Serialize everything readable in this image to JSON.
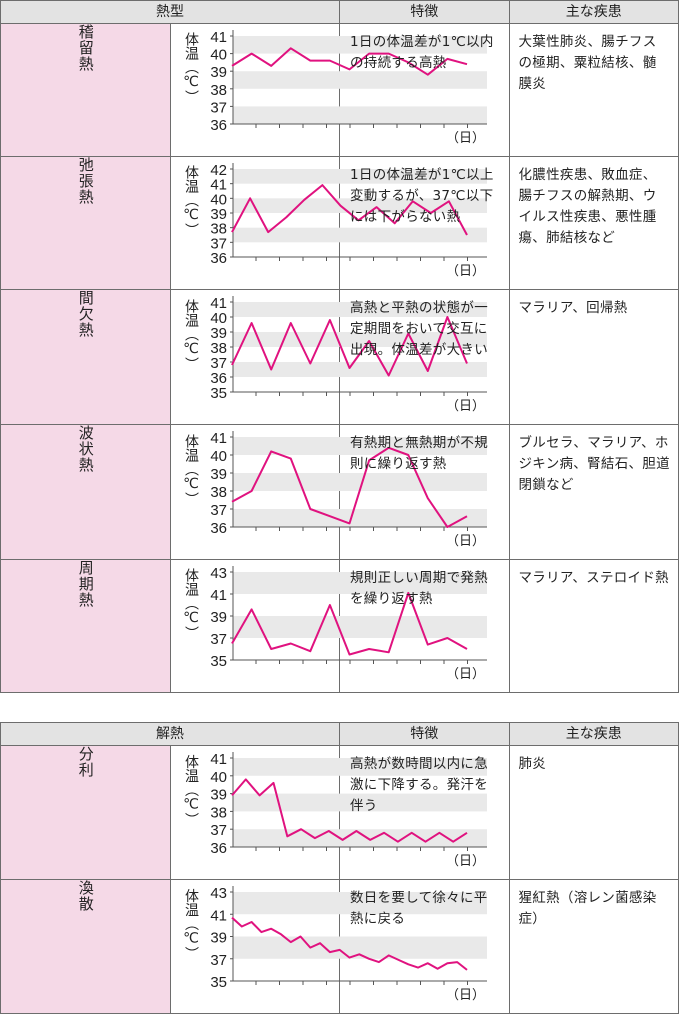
{
  "table1": {
    "headers": [
      "熱型",
      "特徴",
      "主な疾患"
    ],
    "rows": [
      {
        "name": "稽留熱",
        "feature": "1日の体温差が1℃以内の持続する高熱",
        "diseases": "大葉性肺炎、腸チフスの極期、粟粒結核、髄膜炎",
        "chart": {
          "ylabel": "体温（℃）",
          "ticks": [
            "41",
            "40",
            "39",
            "38",
            "37",
            "36"
          ],
          "ymin": 36,
          "ymax": 41,
          "xunit": "（日）",
          "values": [
            39.3,
            40.0,
            39.3,
            40.3,
            39.6,
            39.6,
            39.1,
            40.0,
            40.0,
            39.5,
            38.8,
            39.7,
            39.4
          ]
        }
      },
      {
        "name": "弛張熱",
        "feature": "1日の体温差が1℃以上変動するが、37℃以下には下がらない熱",
        "diseases": "化膿性疾患、敗血症、腸チフスの解熱期、ウイルス性疾患、悪性腫瘍、肺結核など",
        "chart": {
          "ylabel": "体温（℃）",
          "ticks": [
            "42",
            "41",
            "40",
            "39",
            "38",
            "37",
            "36"
          ],
          "ymin": 36,
          "ymax": 42,
          "xunit": "（日）",
          "values": [
            37.7,
            40.0,
            37.7,
            38.7,
            39.9,
            40.9,
            39.5,
            38.5,
            39.4,
            38.3,
            39.8,
            39.0,
            39.8,
            37.5
          ]
        }
      },
      {
        "name": "間欠熱",
        "feature": "高熱と平熱の状態が一定期間をおいて交互に出現。体温差が大きい",
        "diseases": "マラリア、回帰熱",
        "chart": {
          "ylabel": "体温（℃）",
          "ticks": [
            "41",
            "40",
            "39",
            "38",
            "37",
            "36",
            "35"
          ],
          "ymin": 35,
          "ymax": 41,
          "xunit": "（日）",
          "values": [
            36.8,
            39.6,
            36.5,
            39.6,
            36.9,
            39.8,
            36.6,
            38.4,
            36.1,
            38.9,
            36.4,
            40.0,
            36.9
          ]
        }
      },
      {
        "name": "波状熱",
        "feature": "有熱期と無熱期が不規則に繰り返す熱",
        "diseases": "ブルセラ、マラリア、ホジキン病、腎結石、胆道閉鎖など",
        "chart": {
          "ylabel": "体温（℃）",
          "ticks": [
            "41",
            "40",
            "39",
            "38",
            "37",
            "36"
          ],
          "ymin": 36,
          "ymax": 41,
          "xunit": "（日）",
          "values": [
            37.4,
            38.0,
            40.2,
            39.8,
            37.0,
            36.6,
            36.2,
            39.7,
            40.4,
            40.0,
            37.6,
            36.0,
            36.6
          ]
        }
      },
      {
        "name": "周期熱",
        "feature": "規則正しい周期で発熱を繰り返す熱",
        "diseases": "マラリア、ステロイド熱",
        "chart": {
          "ylabel": "体温（℃）",
          "ticks": [
            "43",
            "41",
            "39",
            "37",
            "35"
          ],
          "ymin": 35,
          "ymax": 43,
          "xunit": "（日）",
          "values": [
            36.5,
            39.6,
            36.0,
            36.5,
            35.8,
            40.0,
            35.5,
            36.0,
            35.7,
            41.1,
            36.4,
            37.0,
            36.0
          ]
        }
      }
    ]
  },
  "table2": {
    "headers": [
      "解熱",
      "特徴",
      "主な疾患"
    ],
    "rows": [
      {
        "name": "分利",
        "feature": "高熱が数時間以内に急激に下降する。発汗を伴う",
        "diseases": "肺炎",
        "chart": {
          "ylabel": "体温（℃）",
          "ticks": [
            "41",
            "40",
            "39",
            "38",
            "37",
            "36"
          ],
          "ymin": 36,
          "ymax": 41,
          "xunit": "（日）",
          "values": [
            38.9,
            39.8,
            38.9,
            39.6,
            36.6,
            37.0,
            36.5,
            36.9,
            36.4,
            36.9,
            36.4,
            36.8,
            36.3,
            36.8,
            36.3,
            36.8,
            36.3,
            36.8
          ]
        }
      },
      {
        "name": "渙散",
        "feature": "数日を要して徐々に平熱に戻る",
        "diseases": "猩紅熱（溶レン菌感染症）",
        "chart": {
          "ylabel": "体温（℃）",
          "ticks": [
            "43",
            "41",
            "39",
            "37",
            "35"
          ],
          "ymin": 35,
          "ymax": 43,
          "xunit": "（日）",
          "values": [
            40.7,
            39.9,
            40.3,
            39.4,
            39.7,
            39.2,
            38.5,
            39.0,
            38.0,
            38.4,
            37.6,
            37.8,
            37.1,
            37.4,
            37.0,
            36.7,
            37.3,
            36.9,
            36.5,
            36.2,
            36.6,
            36.1,
            36.6,
            36.7,
            36.0
          ]
        }
      }
    ]
  },
  "colors": {
    "line": "#e0127f",
    "band": "#e9e9e9",
    "side": "#f5d9e7",
    "header": "#e3e3e3"
  },
  "chart_data": [
    {
      "type": "line",
      "ylabel": "体温（℃）",
      "xlabel": "（日）",
      "ylim": [
        36,
        41
      ],
      "values": [
        39.3,
        40.0,
        39.3,
        40.3,
        39.6,
        39.6,
        39.1,
        40.0,
        40.0,
        39.5,
        38.8,
        39.7,
        39.4
      ]
    },
    {
      "type": "line",
      "ylabel": "体温（℃）",
      "xlabel": "（日）",
      "ylim": [
        36,
        42
      ],
      "values": [
        37.7,
        40.0,
        37.7,
        38.7,
        39.9,
        40.9,
        39.5,
        38.5,
        39.4,
        38.3,
        39.8,
        39.0,
        39.8,
        37.5
      ]
    },
    {
      "type": "line",
      "ylabel": "体温（℃）",
      "xlabel": "（日）",
      "ylim": [
        35,
        41
      ],
      "values": [
        36.8,
        39.6,
        36.5,
        39.6,
        36.9,
        39.8,
        36.6,
        38.4,
        36.1,
        38.9,
        36.4,
        40.0,
        36.9
      ]
    },
    {
      "type": "line",
      "ylabel": "体温（℃）",
      "xlabel": "（日）",
      "ylim": [
        36,
        41
      ],
      "values": [
        37.4,
        38.0,
        40.2,
        39.8,
        37.0,
        36.6,
        36.2,
        39.7,
        40.4,
        40.0,
        37.6,
        36.0,
        36.6
      ]
    },
    {
      "type": "line",
      "ylabel": "体温（℃）",
      "xlabel": "（日）",
      "ylim": [
        35,
        43
      ],
      "values": [
        36.5,
        39.6,
        36.0,
        36.5,
        35.8,
        40.0,
        35.5,
        36.0,
        35.7,
        41.1,
        36.4,
        37.0,
        36.0
      ]
    },
    {
      "type": "line",
      "ylabel": "体温（℃）",
      "xlabel": "（日）",
      "ylim": [
        36,
        41
      ],
      "values": [
        38.9,
        39.8,
        38.9,
        39.6,
        36.6,
        37.0,
        36.5,
        36.9,
        36.4,
        36.9,
        36.4,
        36.8,
        36.3,
        36.8,
        36.3,
        36.8,
        36.3,
        36.8
      ]
    },
    {
      "type": "line",
      "ylabel": "体温（℃）",
      "xlabel": "（日）",
      "ylim": [
        35,
        43
      ],
      "values": [
        40.7,
        39.9,
        40.3,
        39.4,
        39.7,
        39.2,
        38.5,
        39.0,
        38.0,
        38.4,
        37.6,
        37.8,
        37.1,
        37.4,
        37.0,
        36.7,
        37.3,
        36.9,
        36.5,
        36.2,
        36.6,
        36.1,
        36.6,
        36.7,
        36.0
      ]
    }
  ]
}
